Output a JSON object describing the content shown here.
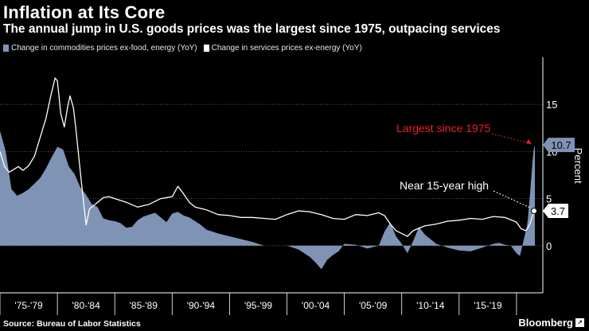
{
  "title": "Inflation at Its Core",
  "subtitle": "The annual jump in U.S. goods prices was the largest since 1975, outpacing services",
  "source": "Source: Bureau of Labor Statistics",
  "brand": "Bloomberg",
  "colors": {
    "goods": "#7f93b5",
    "services": "#ffffff",
    "annotation_red": "#e8202b",
    "grid": "#6a6a6a",
    "background": "#000000"
  },
  "chart_data": {
    "type": "area",
    "title": "Inflation at Its Core",
    "xlabel": "",
    "ylabel": "Percent",
    "ylim": [
      -5,
      20
    ],
    "xlim": [
      1975.0,
      2021.6
    ],
    "yticks": [
      0,
      5,
      10,
      15
    ],
    "xtick_labels": [
      "'75-'79",
      "'80-'84",
      "'85-'89",
      "'90-'94",
      "'95-'99",
      "'00-'04",
      "'05-'09",
      "'10-'14",
      "'15-'19"
    ],
    "xtick_ranges": [
      [
        1975,
        1980
      ],
      [
        1980,
        1985
      ],
      [
        1985,
        1990
      ],
      [
        1990,
        1995
      ],
      [
        1995,
        2000
      ],
      [
        2000,
        2005
      ],
      [
        2005,
        2010
      ],
      [
        2010,
        2015
      ],
      [
        2015,
        2020
      ]
    ],
    "legend": [
      "Change in commodities prices ex-food, energy (YoY)",
      "Change in services prices ex-energy (YoY)"
    ],
    "series": [
      {
        "name": "Change in commodities prices ex-food, energy (YoY)",
        "style": "area",
        "x": [
          1975.0,
          1975.5,
          1976.0,
          1976.5,
          1977.0,
          1977.5,
          1978.0,
          1978.5,
          1979.0,
          1979.5,
          1980.0,
          1980.5,
          1981.0,
          1981.5,
          1982.0,
          1982.5,
          1983.0,
          1983.5,
          1984.0,
          1984.5,
          1985.0,
          1985.5,
          1986.0,
          1986.5,
          1987.0,
          1987.5,
          1988.0,
          1988.5,
          1989.0,
          1989.5,
          1990.0,
          1990.5,
          1991.0,
          1991.5,
          1992.0,
          1992.5,
          1993.0,
          1993.5,
          1994.0,
          1995.0,
          1996.0,
          1997.0,
          1998.0,
          1999.0,
          2000.0,
          2001.0,
          2002.0,
          2002.5,
          2003.0,
          2003.5,
          2004.0,
          2004.5,
          2005.0,
          2006.0,
          2007.0,
          2008.0,
          2008.5,
          2009.0,
          2009.5,
          2010.0,
          2010.5,
          2011.0,
          2011.5,
          2012.0,
          2013.0,
          2014.0,
          2015.0,
          2016.0,
          2017.0,
          2018.0,
          2018.5,
          2019.0,
          2019.5,
          2020.0,
          2020.3,
          2020.6,
          2020.9,
          2021.0,
          2021.1,
          2021.2,
          2021.3,
          2021.4,
          2021.5,
          2021.6
        ],
        "values": [
          12.2,
          10.0,
          6.0,
          5.3,
          5.6,
          6.0,
          6.6,
          7.2,
          8.2,
          9.4,
          10.5,
          10.2,
          8.4,
          7.6,
          6.2,
          5.4,
          4.4,
          4.1,
          2.9,
          2.7,
          2.6,
          2.4,
          1.9,
          2.0,
          2.7,
          3.1,
          3.3,
          3.5,
          3.0,
          2.5,
          3.4,
          3.6,
          3.2,
          3.0,
          2.6,
          2.2,
          1.7,
          1.5,
          1.3,
          1.0,
          0.7,
          0.4,
          0.0,
          0.0,
          0.0,
          -0.4,
          -1.2,
          -1.8,
          -2.5,
          -1.5,
          -1.0,
          -0.6,
          0.2,
          0.1,
          -0.3,
          0.0,
          1.5,
          2.5,
          1.0,
          0.2,
          -0.8,
          0.5,
          2.0,
          1.2,
          0.2,
          -0.2,
          -0.5,
          -0.6,
          -0.2,
          0.2,
          0.3,
          0.1,
          0.0,
          -0.8,
          -1.1,
          0.5,
          2.0,
          2.9,
          4.5,
          5.8,
          7.4,
          9.0,
          10.2,
          10.7
        ]
      },
      {
        "name": "Change in services prices ex-energy (YoY)",
        "style": "line",
        "x": [
          1975.0,
          1975.4,
          1975.8,
          1976.2,
          1976.6,
          1977.0,
          1977.5,
          1978.0,
          1978.5,
          1979.0,
          1979.4,
          1979.8,
          1980.0,
          1980.3,
          1980.6,
          1980.9,
          1981.1,
          1981.4,
          1981.6,
          1981.9,
          1982.2,
          1982.5,
          1982.8,
          1983.1,
          1983.5,
          1984.0,
          1984.5,
          1985.0,
          1986.0,
          1987.0,
          1988.0,
          1989.0,
          1990.0,
          1990.5,
          1991.0,
          1991.5,
          1992.0,
          1993.0,
          1994.0,
          1995.0,
          1996.0,
          1997.0,
          1998.0,
          1999.0,
          2000.0,
          2001.0,
          2002.0,
          2003.0,
          2004.0,
          2005.0,
          2006.0,
          2007.0,
          2008.0,
          2008.5,
          2009.0,
          2009.5,
          2010.0,
          2010.5,
          2011.0,
          2012.0,
          2013.0,
          2014.0,
          2015.0,
          2016.0,
          2017.0,
          2018.0,
          2019.0,
          2020.0,
          2020.4,
          2020.8,
          2021.0,
          2021.2,
          2021.4,
          2021.6
        ],
        "values": [
          10.0,
          8.4,
          7.8,
          8.1,
          8.4,
          8.0,
          8.5,
          9.5,
          11.5,
          13.5,
          15.8,
          17.8,
          17.5,
          14.0,
          12.6,
          14.8,
          15.9,
          14.6,
          12.5,
          9.0,
          5.5,
          2.2,
          3.9,
          4.2,
          4.6,
          5.1,
          5.2,
          5.0,
          4.6,
          4.1,
          4.4,
          5.0,
          5.2,
          6.3,
          5.5,
          4.6,
          4.1,
          3.8,
          3.3,
          3.2,
          3.0,
          3.0,
          2.9,
          2.8,
          3.3,
          3.7,
          3.6,
          3.3,
          2.9,
          2.8,
          3.3,
          3.2,
          3.5,
          3.2,
          2.3,
          1.6,
          1.3,
          1.0,
          1.6,
          2.1,
          2.3,
          2.6,
          2.7,
          2.9,
          2.8,
          3.1,
          3.0,
          2.5,
          1.8,
          1.6,
          1.9,
          2.4,
          3.2,
          3.7
        ]
      }
    ],
    "end_labels": {
      "goods": "10.7",
      "services": "3.7"
    },
    "annotations": [
      {
        "text": "Largest since 1975",
        "target_series": "goods",
        "color": "#e8202b"
      },
      {
        "text": "Near 15-year high",
        "target_series": "services",
        "color": "#ffffff"
      }
    ]
  }
}
